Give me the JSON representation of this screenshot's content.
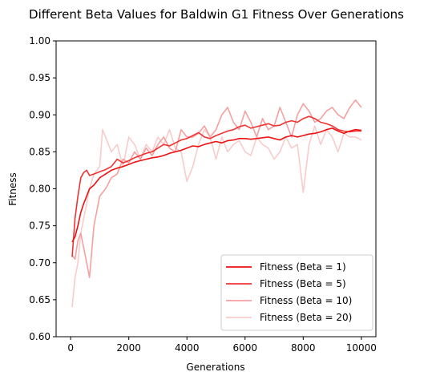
{
  "chart_data": {
    "type": "line",
    "title": "Different Beta Values for Baldwin G1 Fitness Over Generations",
    "xlabel": "Generations",
    "ylabel": "Fitness",
    "xlim": [
      -500,
      10500
    ],
    "ylim": [
      0.6,
      1.0
    ],
    "xticks": [
      0,
      2000,
      4000,
      6000,
      8000,
      10000
    ],
    "yticks": [
      0.6,
      0.65,
      0.7,
      0.75,
      0.8,
      0.85,
      0.9,
      0.95,
      1.0
    ],
    "xtick_labels": [
      "0",
      "2000",
      "4000",
      "6000",
      "8000",
      "10000"
    ],
    "ytick_labels": [
      "0.60",
      "0.65",
      "0.70",
      "0.75",
      "0.80",
      "0.85",
      "0.90",
      "0.95",
      "1.00"
    ],
    "grid": false,
    "legend_position": "bottom-right",
    "series": [
      {
        "name": "Fitness (Beta = 1)",
        "color": "#ee1111",
        "x": [
          50,
          150,
          250,
          350,
          450,
          550,
          650,
          800,
          1000,
          1200,
          1400,
          1600,
          1800,
          2000,
          2200,
          2400,
          2600,
          2800,
          3000,
          3200,
          3400,
          3600,
          3800,
          4000,
          4200,
          4400,
          4600,
          4800,
          5000,
          5200,
          5400,
          5600,
          5800,
          6000,
          6200,
          6400,
          6600,
          6800,
          7000,
          7200,
          7400,
          7600,
          7800,
          8000,
          8200,
          8400,
          8600,
          8800,
          9000,
          9200,
          9400,
          9600,
          9800,
          10000
        ],
        "y": [
          0.728,
          0.735,
          0.75,
          0.768,
          0.78,
          0.79,
          0.8,
          0.805,
          0.815,
          0.82,
          0.825,
          0.828,
          0.83,
          0.833,
          0.836,
          0.838,
          0.84,
          0.842,
          0.843,
          0.845,
          0.848,
          0.85,
          0.852,
          0.855,
          0.858,
          0.857,
          0.86,
          0.862,
          0.864,
          0.862,
          0.865,
          0.866,
          0.868,
          0.868,
          0.867,
          0.868,
          0.869,
          0.87,
          0.868,
          0.866,
          0.87,
          0.872,
          0.87,
          0.872,
          0.874,
          0.875,
          0.877,
          0.88,
          0.882,
          0.878,
          0.875,
          0.878,
          0.88,
          0.879
        ]
      },
      {
        "name": "Fitness (Beta = 5)",
        "color": "#f03434",
        "x": [
          50,
          150,
          250,
          350,
          450,
          550,
          650,
          800,
          1000,
          1200,
          1400,
          1600,
          1800,
          2000,
          2200,
          2400,
          2600,
          2800,
          3000,
          3200,
          3400,
          3600,
          3800,
          4000,
          4200,
          4400,
          4600,
          4800,
          5000,
          5200,
          5400,
          5600,
          5800,
          6000,
          6200,
          6400,
          6600,
          6800,
          7000,
          7200,
          7400,
          7600,
          7800,
          8000,
          8200,
          8400,
          8600,
          8800,
          9000,
          9200,
          9400,
          9600,
          9800,
          10000
        ],
        "y": [
          0.708,
          0.76,
          0.79,
          0.815,
          0.822,
          0.825,
          0.818,
          0.82,
          0.823,
          0.826,
          0.83,
          0.84,
          0.835,
          0.838,
          0.842,
          0.845,
          0.848,
          0.85,
          0.855,
          0.86,
          0.858,
          0.862,
          0.866,
          0.868,
          0.872,
          0.876,
          0.87,
          0.868,
          0.872,
          0.875,
          0.878,
          0.88,
          0.884,
          0.886,
          0.882,
          0.884,
          0.886,
          0.888,
          0.885,
          0.886,
          0.89,
          0.892,
          0.89,
          0.895,
          0.898,
          0.895,
          0.89,
          0.888,
          0.885,
          0.88,
          0.878,
          0.877,
          0.878,
          0.878
        ]
      },
      {
        "name": "Fitness (Beta = 10)",
        "color": "#f5a0a0",
        "x": [
          50,
          150,
          250,
          350,
          450,
          550,
          650,
          800,
          1000,
          1200,
          1400,
          1600,
          1800,
          2000,
          2200,
          2400,
          2600,
          2800,
          3000,
          3200,
          3400,
          3600,
          3800,
          4000,
          4200,
          4400,
          4600,
          4800,
          5000,
          5200,
          5400,
          5600,
          5800,
          6000,
          6200,
          6400,
          6600,
          6800,
          7000,
          7200,
          7400,
          7600,
          7800,
          8000,
          8200,
          8400,
          8600,
          8800,
          9000,
          9200,
          9400,
          9600,
          9800,
          10000
        ],
        "y": [
          0.71,
          0.705,
          0.73,
          0.74,
          0.72,
          0.7,
          0.68,
          0.75,
          0.79,
          0.8,
          0.815,
          0.82,
          0.84,
          0.835,
          0.85,
          0.84,
          0.855,
          0.845,
          0.86,
          0.87,
          0.855,
          0.85,
          0.88,
          0.87,
          0.87,
          0.875,
          0.885,
          0.87,
          0.88,
          0.9,
          0.91,
          0.89,
          0.88,
          0.905,
          0.89,
          0.87,
          0.895,
          0.88,
          0.885,
          0.91,
          0.89,
          0.87,
          0.9,
          0.915,
          0.905,
          0.89,
          0.895,
          0.905,
          0.91,
          0.9,
          0.895,
          0.91,
          0.92,
          0.91
        ]
      },
      {
        "name": "Fitness (Beta = 20)",
        "color": "#f8cccc",
        "x": [
          50,
          150,
          250,
          350,
          450,
          550,
          650,
          800,
          1000,
          1100,
          1200,
          1400,
          1600,
          1800,
          2000,
          2200,
          2400,
          2600,
          2800,
          3000,
          3200,
          3400,
          3600,
          3800,
          4000,
          4200,
          4400,
          4600,
          4800,
          5000,
          5200,
          5400,
          5600,
          5800,
          6000,
          6200,
          6400,
          6600,
          6800,
          7000,
          7200,
          7400,
          7600,
          7800,
          8000,
          8200,
          8400,
          8600,
          8800,
          9000,
          9200,
          9400,
          9600,
          9800,
          10000
        ],
        "y": [
          0.64,
          0.68,
          0.7,
          0.74,
          0.76,
          0.78,
          0.8,
          0.82,
          0.83,
          0.88,
          0.87,
          0.85,
          0.86,
          0.83,
          0.87,
          0.86,
          0.84,
          0.86,
          0.85,
          0.87,
          0.86,
          0.88,
          0.855,
          0.85,
          0.81,
          0.83,
          0.86,
          0.88,
          0.87,
          0.84,
          0.87,
          0.85,
          0.86,
          0.865,
          0.85,
          0.845,
          0.87,
          0.86,
          0.855,
          0.84,
          0.85,
          0.87,
          0.855,
          0.86,
          0.795,
          0.86,
          0.885,
          0.86,
          0.88,
          0.87,
          0.85,
          0.875,
          0.87,
          0.87,
          0.866
        ]
      }
    ]
  }
}
